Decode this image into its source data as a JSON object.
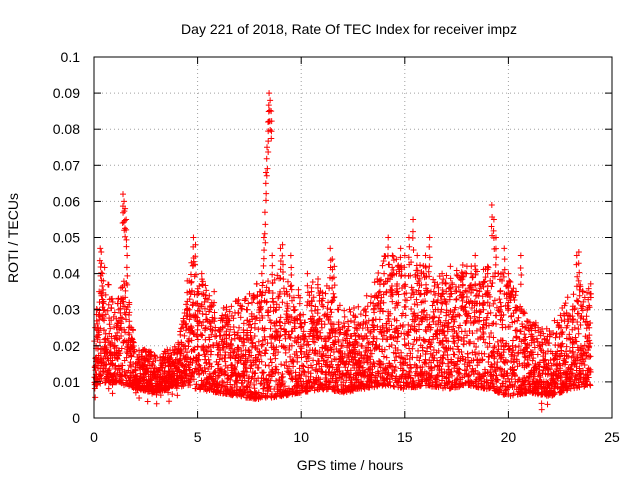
{
  "chart_data": {
    "type": "scatter",
    "title": "Day 221 of 2018, Rate Of TEC Index for receiver impz",
    "xlabel": "GPS time / hours",
    "ylabel": "ROTI / TECUs",
    "xlim": [
      0,
      25
    ],
    "ylim": [
      0,
      0.1
    ],
    "x_ticks": [
      0,
      5,
      10,
      15,
      20,
      25
    ],
    "x_tick_labels": [
      "0",
      "5",
      "10",
      "15",
      "20",
      "25"
    ],
    "y_ticks": [
      0,
      0.01,
      0.02,
      0.03,
      0.04,
      0.05,
      0.06,
      0.07,
      0.08,
      0.09,
      0.1
    ],
    "y_tick_labels": [
      "0",
      "0.01",
      "0.02",
      "0.03",
      "0.04",
      "0.05",
      "0.06",
      "0.07",
      "0.08",
      "0.09",
      "0.1"
    ],
    "grid": true,
    "marker": "+",
    "series_color": "#ff0000",
    "series": [
      {
        "name": "ROTI",
        "points": [
          [
            0.05,
            0.014
          ],
          [
            0.1,
            0.02
          ],
          [
            0.15,
            0.03
          ],
          [
            0.2,
            0.025
          ],
          [
            0.25,
            0.035
          ],
          [
            0.3,
            0.047
          ],
          [
            0.35,
            0.046
          ],
          [
            0.4,
            0.04
          ],
          [
            0.45,
            0.038
          ],
          [
            0.5,
            0.03
          ],
          [
            0.55,
            0.022
          ],
          [
            0.6,
            0.018
          ],
          [
            0.7,
            0.016
          ],
          [
            0.8,
            0.02
          ],
          [
            0.9,
            0.015
          ],
          [
            1.0,
            0.022
          ],
          [
            1.1,
            0.025
          ],
          [
            1.2,
            0.03
          ],
          [
            1.3,
            0.036
          ],
          [
            1.4,
            0.062
          ],
          [
            1.45,
            0.06
          ],
          [
            1.5,
            0.058
          ],
          [
            1.55,
            0.055
          ],
          [
            1.6,
            0.045
          ],
          [
            1.7,
            0.032
          ],
          [
            1.8,
            0.025
          ],
          [
            1.9,
            0.018
          ],
          [
            2.0,
            0.015
          ],
          [
            2.2,
            0.014
          ],
          [
            2.4,
            0.016
          ],
          [
            2.6,
            0.013
          ],
          [
            2.8,
            0.015
          ],
          [
            3.0,
            0.012
          ],
          [
            3.2,
            0.014
          ],
          [
            3.4,
            0.016
          ],
          [
            3.6,
            0.013
          ],
          [
            3.8,
            0.015
          ],
          [
            4.0,
            0.014
          ],
          [
            4.2,
            0.018
          ],
          [
            4.4,
            0.02
          ],
          [
            4.5,
            0.038
          ],
          [
            4.6,
            0.03
          ],
          [
            4.7,
            0.043
          ],
          [
            4.8,
            0.05
          ],
          [
            4.9,
            0.048
          ],
          [
            5.0,
            0.035
          ],
          [
            5.2,
            0.04
          ],
          [
            5.4,
            0.025
          ],
          [
            5.6,
            0.03
          ],
          [
            5.8,
            0.035
          ],
          [
            6.0,
            0.02
          ],
          [
            6.2,
            0.025
          ],
          [
            6.4,
            0.03
          ],
          [
            6.6,
            0.02
          ],
          [
            6.8,
            0.022
          ],
          [
            7.0,
            0.025
          ],
          [
            7.2,
            0.02
          ],
          [
            7.4,
            0.03
          ],
          [
            7.6,
            0.025
          ],
          [
            7.8,
            0.02
          ],
          [
            8.0,
            0.035
          ],
          [
            8.1,
            0.04
          ],
          [
            8.2,
            0.05
          ],
          [
            8.25,
            0.057
          ],
          [
            8.3,
            0.068
          ],
          [
            8.35,
            0.075
          ],
          [
            8.4,
            0.082
          ],
          [
            8.45,
            0.09
          ],
          [
            8.5,
            0.088
          ],
          [
            8.55,
            0.085
          ],
          [
            8.6,
            0.045
          ],
          [
            8.8,
            0.03
          ],
          [
            9.0,
            0.047
          ],
          [
            9.1,
            0.048
          ],
          [
            9.3,
            0.035
          ],
          [
            9.5,
            0.045
          ],
          [
            9.7,
            0.03
          ],
          [
            10.0,
            0.025
          ],
          [
            10.3,
            0.04
          ],
          [
            10.5,
            0.035
          ],
          [
            10.8,
            0.03
          ],
          [
            11.0,
            0.025
          ],
          [
            11.2,
            0.02
          ],
          [
            11.4,
            0.047
          ],
          [
            11.5,
            0.044
          ],
          [
            11.6,
            0.042
          ],
          [
            11.8,
            0.03
          ],
          [
            12.0,
            0.025
          ],
          [
            12.3,
            0.02
          ],
          [
            12.6,
            0.025
          ],
          [
            12.9,
            0.02
          ],
          [
            13.2,
            0.025
          ],
          [
            13.5,
            0.03
          ],
          [
            13.8,
            0.035
          ],
          [
            14.0,
            0.04
          ],
          [
            14.2,
            0.05
          ],
          [
            14.4,
            0.045
          ],
          [
            14.6,
            0.04
          ],
          [
            14.8,
            0.047
          ],
          [
            15.0,
            0.045
          ],
          [
            15.2,
            0.05
          ],
          [
            15.4,
            0.055
          ],
          [
            15.6,
            0.045
          ],
          [
            15.8,
            0.04
          ],
          [
            16.0,
            0.045
          ],
          [
            16.2,
            0.05
          ],
          [
            16.4,
            0.035
          ],
          [
            16.6,
            0.03
          ],
          [
            16.8,
            0.04
          ],
          [
            17.0,
            0.035
          ],
          [
            17.2,
            0.042
          ],
          [
            17.4,
            0.03
          ],
          [
            17.6,
            0.025
          ],
          [
            17.8,
            0.04
          ],
          [
            18.0,
            0.035
          ],
          [
            18.2,
            0.04
          ],
          [
            18.4,
            0.045
          ],
          [
            18.6,
            0.035
          ],
          [
            18.8,
            0.03
          ],
          [
            19.0,
            0.04
          ],
          [
            19.2,
            0.059
          ],
          [
            19.3,
            0.055
          ],
          [
            19.4,
            0.05
          ],
          [
            19.6,
            0.035
          ],
          [
            19.8,
            0.047
          ],
          [
            20.0,
            0.04
          ],
          [
            20.2,
            0.02
          ],
          [
            20.4,
            0.03
          ],
          [
            20.6,
            0.045
          ],
          [
            20.8,
            0.025
          ],
          [
            21.0,
            0.02
          ],
          [
            21.3,
            0.015
          ],
          [
            21.6,
            0.01
          ],
          [
            21.9,
            0.012
          ],
          [
            22.2,
            0.015
          ],
          [
            22.5,
            0.02
          ],
          [
            22.8,
            0.025
          ],
          [
            23.1,
            0.03
          ],
          [
            23.3,
            0.045
          ],
          [
            23.4,
            0.046
          ],
          [
            23.6,
            0.035
          ],
          [
            23.8,
            0.03
          ],
          [
            23.9,
            0.025
          ]
        ],
        "band_min": [
          [
            0,
            0.009
          ],
          [
            1,
            0.01
          ],
          [
            2,
            0.008
          ],
          [
            3,
            0.007
          ],
          [
            4,
            0.009
          ],
          [
            5,
            0.008
          ],
          [
            6,
            0.007
          ],
          [
            7,
            0.006
          ],
          [
            8,
            0.005
          ],
          [
            9,
            0.006
          ],
          [
            10,
            0.007
          ],
          [
            11,
            0.008
          ],
          [
            12,
            0.007
          ],
          [
            13,
            0.008
          ],
          [
            14,
            0.009
          ],
          [
            15,
            0.008
          ],
          [
            16,
            0.009
          ],
          [
            17,
            0.008
          ],
          [
            18,
            0.009
          ],
          [
            19,
            0.008
          ],
          [
            20,
            0.006
          ],
          [
            21,
            0.007
          ],
          [
            22,
            0.006
          ],
          [
            23,
            0.008
          ],
          [
            24,
            0.009
          ]
        ],
        "band_max": [
          [
            0,
            0.03
          ],
          [
            0.5,
            0.042
          ],
          [
            1,
            0.03
          ],
          [
            1.5,
            0.04
          ],
          [
            2,
            0.02
          ],
          [
            3,
            0.018
          ],
          [
            4,
            0.02
          ],
          [
            4.8,
            0.045
          ],
          [
            5.5,
            0.035
          ],
          [
            6,
            0.03
          ],
          [
            7,
            0.033
          ],
          [
            8,
            0.038
          ],
          [
            9,
            0.04
          ],
          [
            10,
            0.035
          ],
          [
            11,
            0.04
          ],
          [
            12,
            0.03
          ],
          [
            13,
            0.032
          ],
          [
            14,
            0.045
          ],
          [
            15,
            0.045
          ],
          [
            16,
            0.042
          ],
          [
            17,
            0.04
          ],
          [
            18,
            0.043
          ],
          [
            19,
            0.042
          ],
          [
            20,
            0.04
          ],
          [
            21,
            0.028
          ],
          [
            22,
            0.025
          ],
          [
            23,
            0.035
          ],
          [
            24,
            0.04
          ]
        ]
      }
    ]
  }
}
